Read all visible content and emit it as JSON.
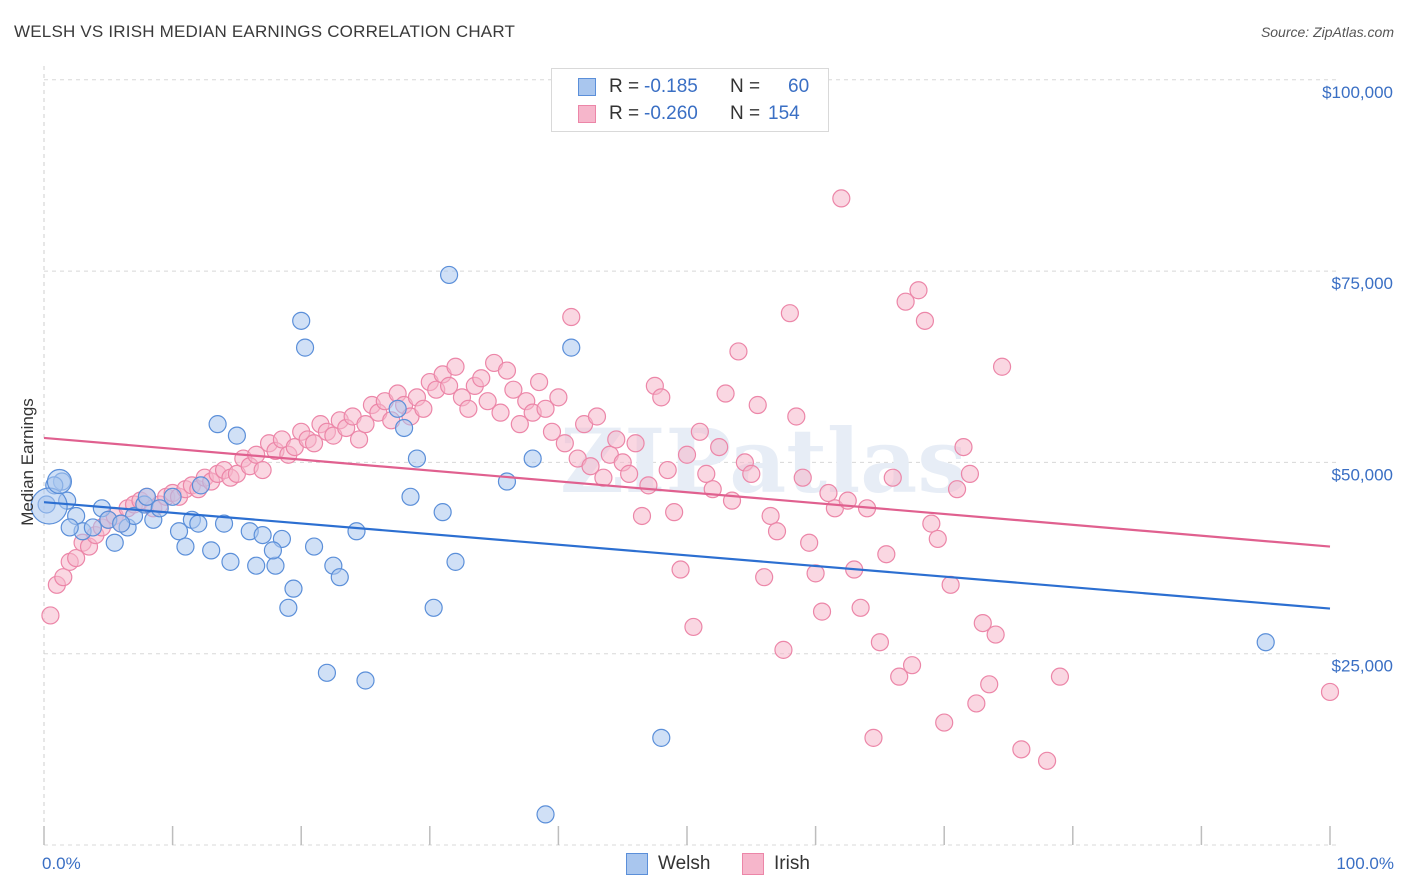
{
  "title": "WELSH VS IRISH MEDIAN EARNINGS CORRELATION CHART",
  "source": "Source: ZipAtlas.com",
  "legend": {
    "rows": [
      {
        "r_label": "R =",
        "r_value": "-0.185",
        "n_label": "N =",
        "n_value": "60"
      },
      {
        "r_label": "R =",
        "r_value": "-0.260",
        "n_label": "N =",
        "n_value": "154"
      }
    ]
  },
  "bottom_legend": [
    "Welsh",
    "Irish"
  ],
  "colors": {
    "welsh_fill": "#a9c6ee",
    "welsh_stroke": "#5b8fd9",
    "welsh_line": "#2c6fd1",
    "irish_fill": "#f6b6cb",
    "irish_stroke": "#ec86a8",
    "irish_line": "#e0608f",
    "grid": "#d8d8d8",
    "accent_text": "#3a6fc4"
  },
  "chart_data": {
    "type": "scatter",
    "title": "WELSH VS IRISH MEDIAN EARNINGS CORRELATION CHART",
    "ylabel": "Median Earnings",
    "xlabel": "",
    "x_tick_labels": [
      "0.0%",
      "100.0%"
    ],
    "y_tick_labels": [
      "$100,000",
      "$75,000",
      "$50,000",
      "$25,000"
    ],
    "y_ticks": [
      100000,
      75000,
      50000,
      25000
    ],
    "xlim": [
      0,
      100
    ],
    "ylim": [
      0,
      102000
    ],
    "grid": true,
    "watermark": "ZIPatlas",
    "series": [
      {
        "name": "Welsh",
        "r": -0.185,
        "n": 60,
        "trend": [
          [
            0,
            44800
          ],
          [
            100,
            30900
          ]
        ],
        "points": [
          [
            0.2,
            44500
          ],
          [
            1.4,
            47500
          ],
          [
            1.8,
            45000
          ],
          [
            2.5,
            43000
          ],
          [
            3,
            41000
          ],
          [
            3.8,
            41500
          ],
          [
            4.5,
            44000
          ],
          [
            5,
            42500
          ],
          [
            5.5,
            39500
          ],
          [
            6.5,
            41500
          ],
          [
            7,
            43000
          ],
          [
            7.8,
            44500
          ],
          [
            8.5,
            42500
          ],
          [
            9,
            44000
          ],
          [
            10,
            45500
          ],
          [
            10.5,
            41000
          ],
          [
            11,
            39000
          ],
          [
            11.5,
            42500
          ],
          [
            12.2,
            47000
          ],
          [
            13,
            38500
          ],
          [
            14,
            42000
          ],
          [
            13.5,
            55000
          ],
          [
            15,
            53500
          ],
          [
            14.5,
            37000
          ],
          [
            16,
            41000
          ],
          [
            16.5,
            36500
          ],
          [
            17,
            40500
          ],
          [
            18,
            36500
          ],
          [
            18.5,
            40000
          ],
          [
            19,
            31000
          ],
          [
            19.4,
            33500
          ],
          [
            20,
            68500
          ],
          [
            20.3,
            65000
          ],
          [
            21,
            39000
          ],
          [
            22,
            22500
          ],
          [
            22.5,
            36500
          ],
          [
            23,
            35000
          ],
          [
            24.3,
            41000
          ],
          [
            25,
            21500
          ],
          [
            27.5,
            57000
          ],
          [
            28,
            54500
          ],
          [
            28.5,
            45500
          ],
          [
            29,
            50500
          ],
          [
            30.3,
            31000
          ],
          [
            31,
            43500
          ],
          [
            31.5,
            74500
          ],
          [
            32,
            37000
          ],
          [
            36,
            47500
          ],
          [
            38,
            50500
          ],
          [
            39,
            4000
          ],
          [
            41,
            65000
          ],
          [
            48,
            14000
          ],
          [
            95,
            26500
          ],
          [
            0.8,
            47000
          ],
          [
            2,
            41500
          ],
          [
            6,
            42000
          ],
          [
            8,
            45500
          ],
          [
            12,
            42000
          ],
          [
            17.8,
            38500
          ]
        ]
      },
      {
        "name": "Irish",
        "r": -0.26,
        "n": 154,
        "trend": [
          [
            0,
            53200
          ],
          [
            100,
            39000
          ]
        ],
        "points": [
          [
            0.5,
            30000
          ],
          [
            1,
            34000
          ],
          [
            1.5,
            35000
          ],
          [
            2,
            37000
          ],
          [
            2.5,
            37500
          ],
          [
            3,
            39500
          ],
          [
            3.5,
            39000
          ],
          [
            4,
            40500
          ],
          [
            4.5,
            41500
          ],
          [
            5,
            42500
          ],
          [
            5.5,
            43000
          ],
          [
            6,
            42000
          ],
          [
            6.5,
            44000
          ],
          [
            7,
            44500
          ],
          [
            7.5,
            45000
          ],
          [
            8,
            45500
          ],
          [
            8.5,
            44000
          ],
          [
            9,
            44500
          ],
          [
            9.5,
            45500
          ],
          [
            10,
            46000
          ],
          [
            10.5,
            45500
          ],
          [
            11,
            46500
          ],
          [
            11.5,
            47000
          ],
          [
            12,
            46500
          ],
          [
            12.5,
            48000
          ],
          [
            13,
            47500
          ],
          [
            13.5,
            48500
          ],
          [
            14,
            49000
          ],
          [
            14.5,
            48000
          ],
          [
            15,
            48500
          ],
          [
            15.5,
            50500
          ],
          [
            16,
            49500
          ],
          [
            16.5,
            51000
          ],
          [
            17,
            49000
          ],
          [
            17.5,
            52500
          ],
          [
            18,
            51500
          ],
          [
            18.5,
            53000
          ],
          [
            19,
            51000
          ],
          [
            19.5,
            52000
          ],
          [
            20,
            54000
          ],
          [
            20.5,
            53000
          ],
          [
            21,
            52500
          ],
          [
            21.5,
            55000
          ],
          [
            22,
            54000
          ],
          [
            22.5,
            53500
          ],
          [
            23,
            55500
          ],
          [
            23.5,
            54500
          ],
          [
            24,
            56000
          ],
          [
            24.5,
            53000
          ],
          [
            25,
            55000
          ],
          [
            25.5,
            57500
          ],
          [
            26,
            56500
          ],
          [
            26.5,
            58000
          ],
          [
            27,
            55500
          ],
          [
            27.5,
            59000
          ],
          [
            28,
            57500
          ],
          [
            28.5,
            56000
          ],
          [
            29,
            58500
          ],
          [
            29.5,
            57000
          ],
          [
            30,
            60500
          ],
          [
            30.5,
            59500
          ],
          [
            31,
            61500
          ],
          [
            31.5,
            60000
          ],
          [
            32,
            62500
          ],
          [
            32.5,
            58500
          ],
          [
            33,
            57000
          ],
          [
            33.5,
            60000
          ],
          [
            34,
            61000
          ],
          [
            34.5,
            58000
          ],
          [
            35,
            63000
          ],
          [
            35.5,
            56500
          ],
          [
            36,
            62000
          ],
          [
            36.5,
            59500
          ],
          [
            37,
            55000
          ],
          [
            37.5,
            58000
          ],
          [
            38,
            56500
          ],
          [
            38.5,
            60500
          ],
          [
            39,
            57000
          ],
          [
            39.5,
            54000
          ],
          [
            40,
            58500
          ],
          [
            40.5,
            52500
          ],
          [
            41,
            69000
          ],
          [
            41.5,
            50500
          ],
          [
            42,
            55000
          ],
          [
            42.5,
            49500
          ],
          [
            43,
            56000
          ],
          [
            43.5,
            48000
          ],
          [
            44,
            51000
          ],
          [
            44.5,
            53000
          ],
          [
            45,
            50000
          ],
          [
            45.5,
            48500
          ],
          [
            46,
            52500
          ],
          [
            46.5,
            43000
          ],
          [
            47,
            47000
          ],
          [
            47.5,
            60000
          ],
          [
            48,
            58500
          ],
          [
            48.5,
            49000
          ],
          [
            49,
            43500
          ],
          [
            49.5,
            36000
          ],
          [
            50,
            51000
          ],
          [
            50.5,
            28500
          ],
          [
            51,
            54000
          ],
          [
            51.5,
            48500
          ],
          [
            52,
            46500
          ],
          [
            52.5,
            52000
          ],
          [
            53,
            59000
          ],
          [
            53.5,
            45000
          ],
          [
            54,
            64500
          ],
          [
            54.5,
            50000
          ],
          [
            55,
            48500
          ],
          [
            55.5,
            57500
          ],
          [
            56,
            35000
          ],
          [
            56.5,
            43000
          ],
          [
            57,
            41000
          ],
          [
            57.5,
            25500
          ],
          [
            58,
            69500
          ],
          [
            58.5,
            56000
          ],
          [
            59,
            48000
          ],
          [
            59.5,
            39500
          ],
          [
            60,
            35500
          ],
          [
            60.5,
            30500
          ],
          [
            61,
            46000
          ],
          [
            61.5,
            44000
          ],
          [
            62,
            84500
          ],
          [
            62.5,
            45000
          ],
          [
            63,
            36000
          ],
          [
            63.5,
            31000
          ],
          [
            64,
            44000
          ],
          [
            64.5,
            14000
          ],
          [
            65,
            26500
          ],
          [
            65.5,
            38000
          ],
          [
            66,
            48000
          ],
          [
            66.5,
            22000
          ],
          [
            67,
            71000
          ],
          [
            67.5,
            23500
          ],
          [
            68,
            72500
          ],
          [
            68.5,
            68500
          ],
          [
            69,
            42000
          ],
          [
            69.5,
            40000
          ],
          [
            70,
            16000
          ],
          [
            70.5,
            34000
          ],
          [
            71,
            46500
          ],
          [
            71.5,
            52000
          ],
          [
            72,
            48500
          ],
          [
            72.5,
            18500
          ],
          [
            73,
            29000
          ],
          [
            73.5,
            21000
          ],
          [
            74,
            27500
          ],
          [
            74.5,
            62500
          ],
          [
            76,
            12500
          ],
          [
            78,
            11000
          ],
          [
            79,
            22000
          ],
          [
            100,
            20000
          ]
        ]
      }
    ]
  }
}
